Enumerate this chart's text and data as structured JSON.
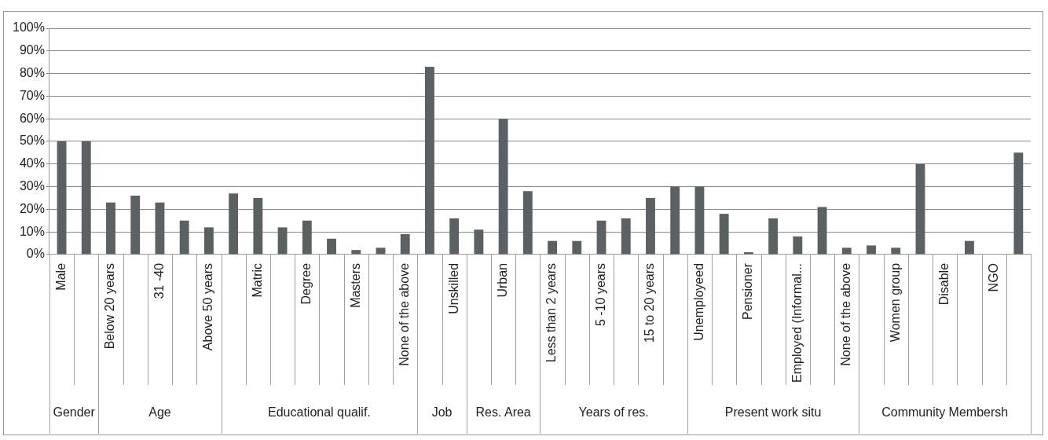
{
  "chart_data": {
    "type": "bar",
    "categories": [
      "Male",
      null,
      "Below 20 years",
      null,
      "31 -40",
      null,
      "Above 50 years",
      null,
      "Matric",
      null,
      "Degree",
      null,
      "Masters",
      null,
      "None of the above",
      null,
      "Unskilled",
      null,
      "Urban",
      null,
      "Less than 2 years",
      null,
      "5 -10 years",
      null,
      "15 to 20 years",
      null,
      "Unemployeed",
      null,
      "Pensioner",
      null,
      "Employed (Informal...",
      null,
      "None of the above",
      null,
      "Women group",
      null,
      "Disable",
      null,
      "NGO",
      null
    ],
    "values": [
      50,
      50,
      23,
      26,
      23,
      15,
      12,
      27,
      25,
      12,
      15,
      7,
      2,
      3,
      9,
      83,
      16,
      11,
      60,
      28,
      6,
      6,
      15,
      16,
      25,
      30,
      30,
      18,
      1,
      16,
      8,
      21,
      3,
      4,
      3,
      40,
      0,
      6,
      0,
      45
    ],
    "color": "#5b6063",
    "ylim": [
      0,
      100
    ],
    "yticks": [
      {
        "value": 0,
        "label": "0%"
      },
      {
        "value": 10,
        "label": "10%"
      },
      {
        "value": 20,
        "label": "20%"
      },
      {
        "value": 30,
        "label": "30%"
      },
      {
        "value": 40,
        "label": "40%"
      },
      {
        "value": 50,
        "label": "50%"
      },
      {
        "value": 60,
        "label": "60%"
      },
      {
        "value": 70,
        "label": "70%"
      },
      {
        "value": 80,
        "label": "80%"
      },
      {
        "value": 90,
        "label": "90%"
      },
      {
        "value": 100,
        "label": "100%"
      }
    ],
    "grid": "y",
    "legend": false,
    "annotations": [
      "Gender",
      "Age",
      "Educational qualif.",
      "Job",
      "Res. Area",
      "Years of res.",
      "Present work situ",
      "Community Membersh"
    ]
  }
}
